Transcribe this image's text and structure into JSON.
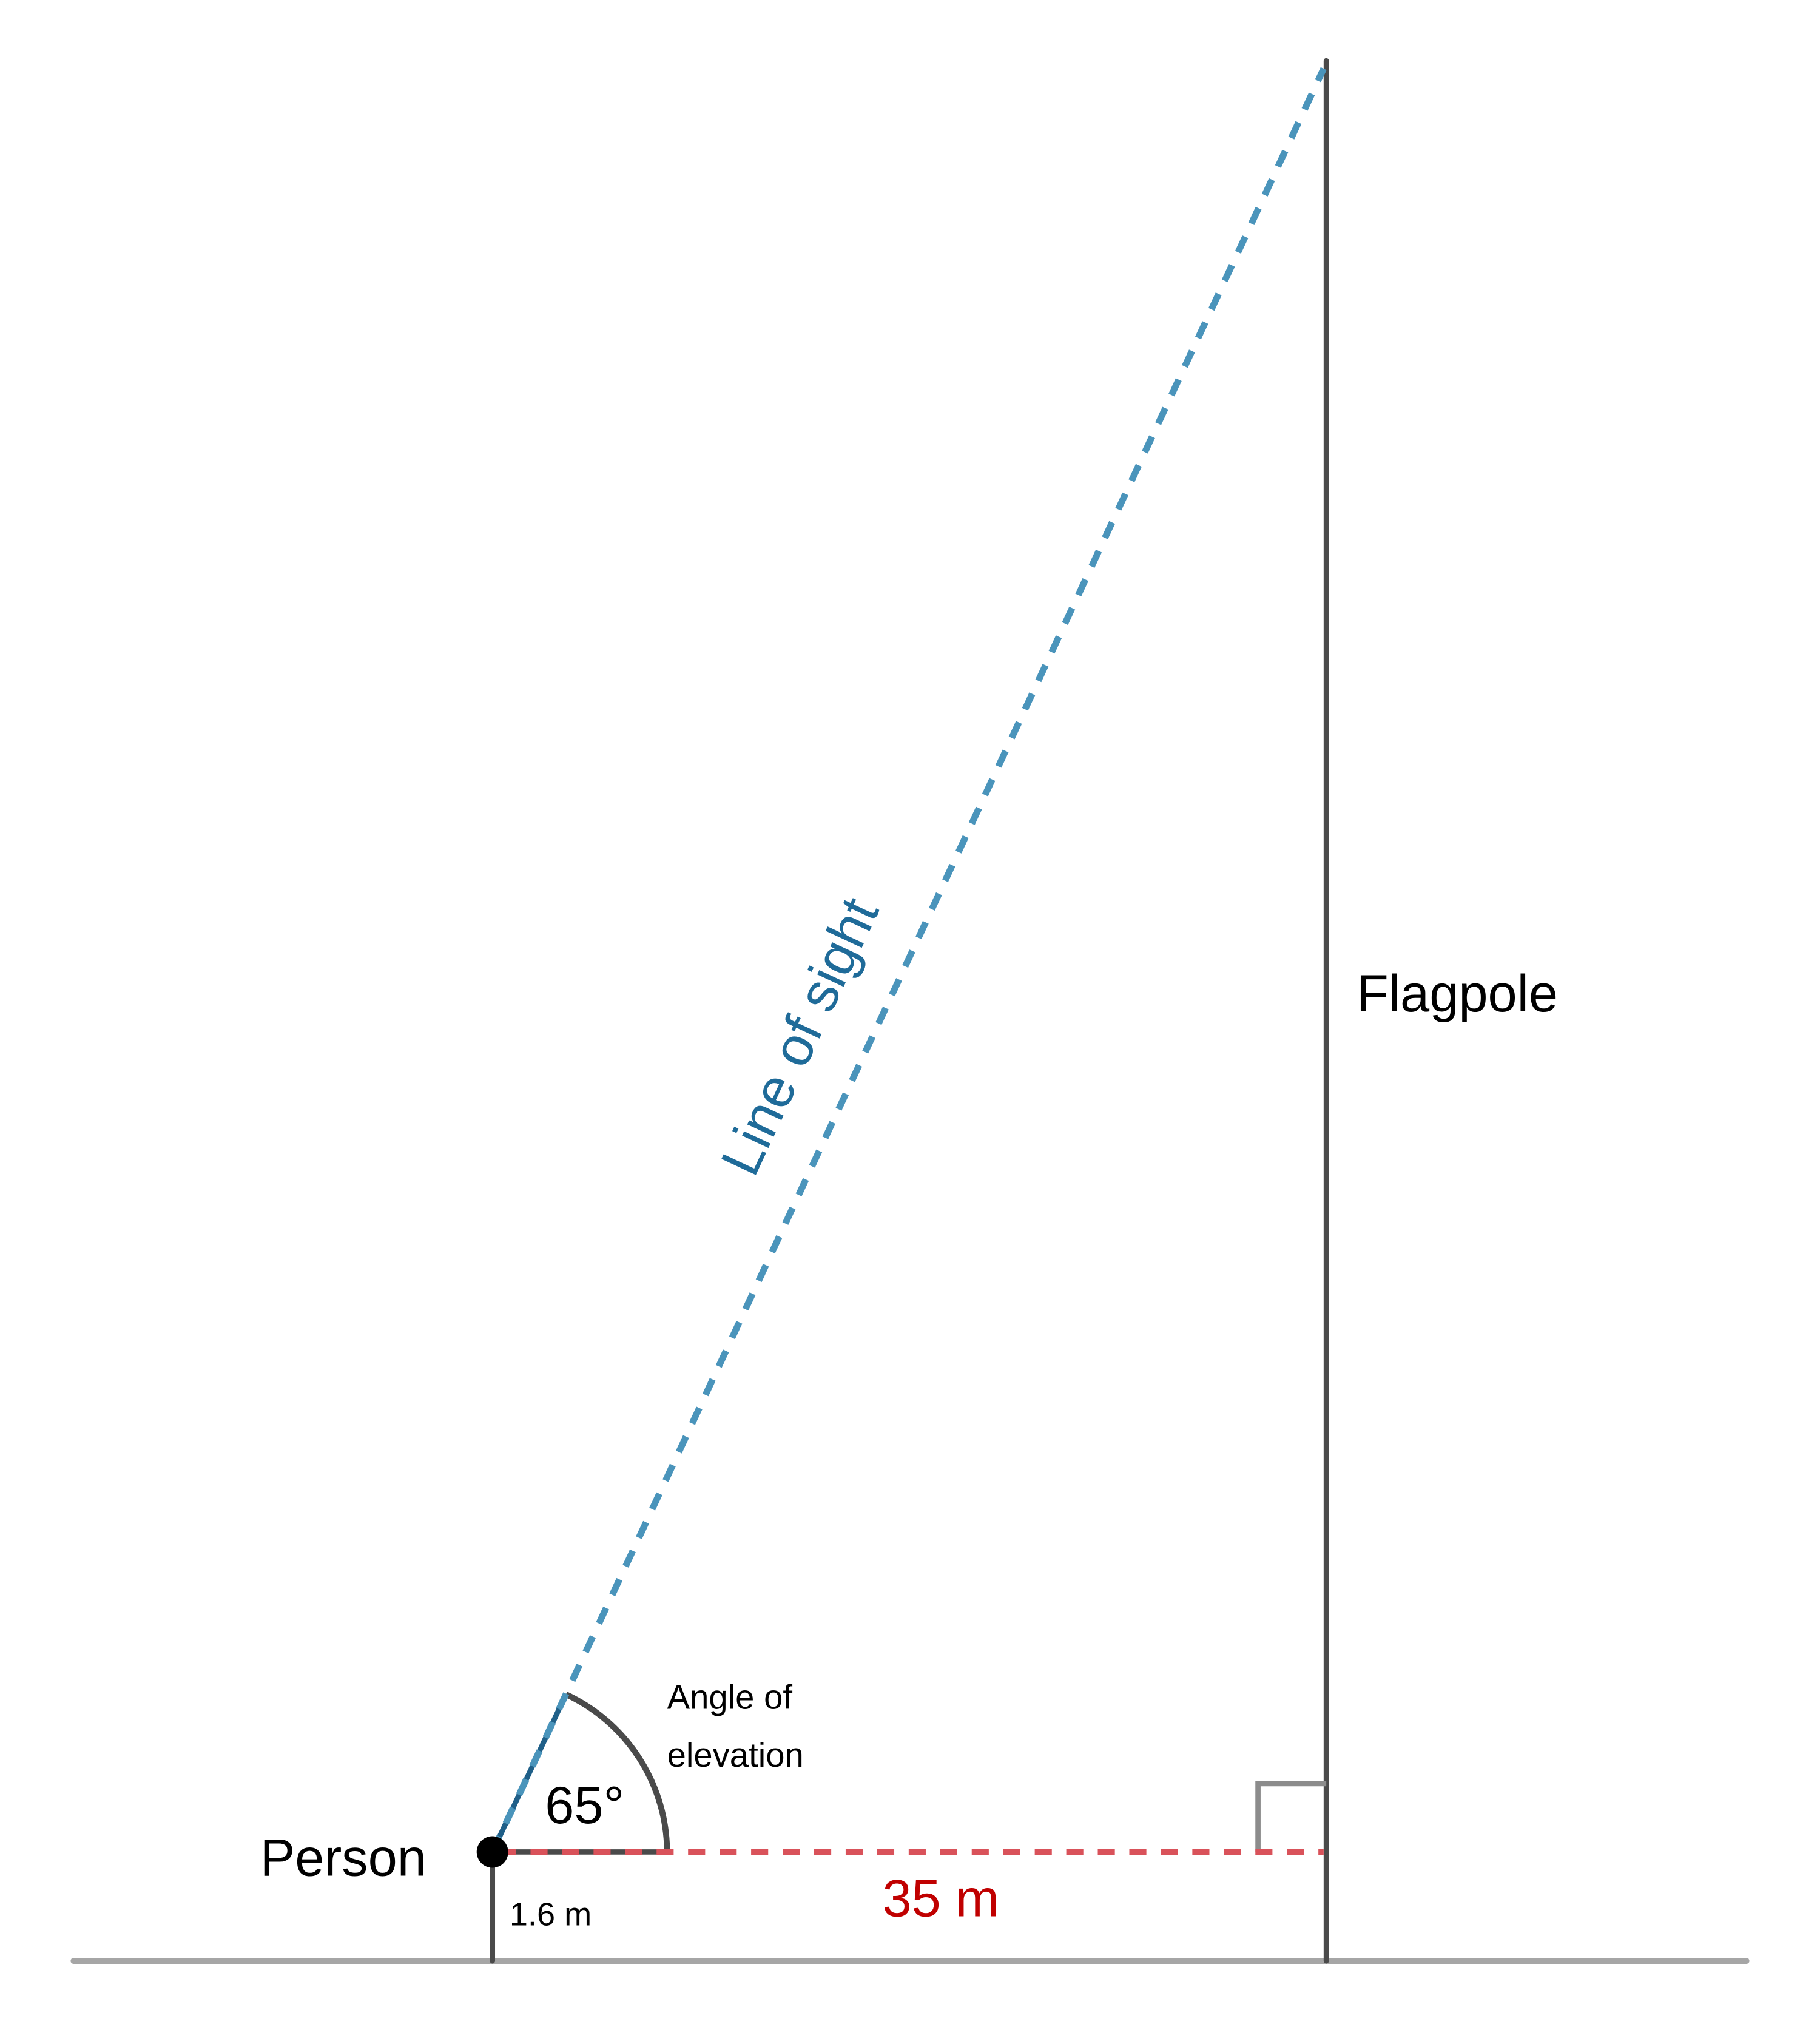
{
  "labels": {
    "flagpole": "Flagpole",
    "person": "Person",
    "angle_value": "65°",
    "angle_caption_line1": "Angle of",
    "angle_caption_line2": "elevation",
    "eye_height": "1.6 m",
    "distance": "35 m",
    "line_of_sight": "Line of sight"
  },
  "geometry_values": {
    "angle_of_elevation_deg": 65,
    "eye_height_m": 1.6,
    "distance_m": 35
  },
  "colors": {
    "ground": "#a6a6a6",
    "structure": "#4a4a4a",
    "line_of_sight": "#4a94bb",
    "line_of_sight_text": "#1f6b99",
    "distance_line": "#d9525a",
    "distance_text": "#c00000",
    "right_angle": "#8c8c8c"
  }
}
